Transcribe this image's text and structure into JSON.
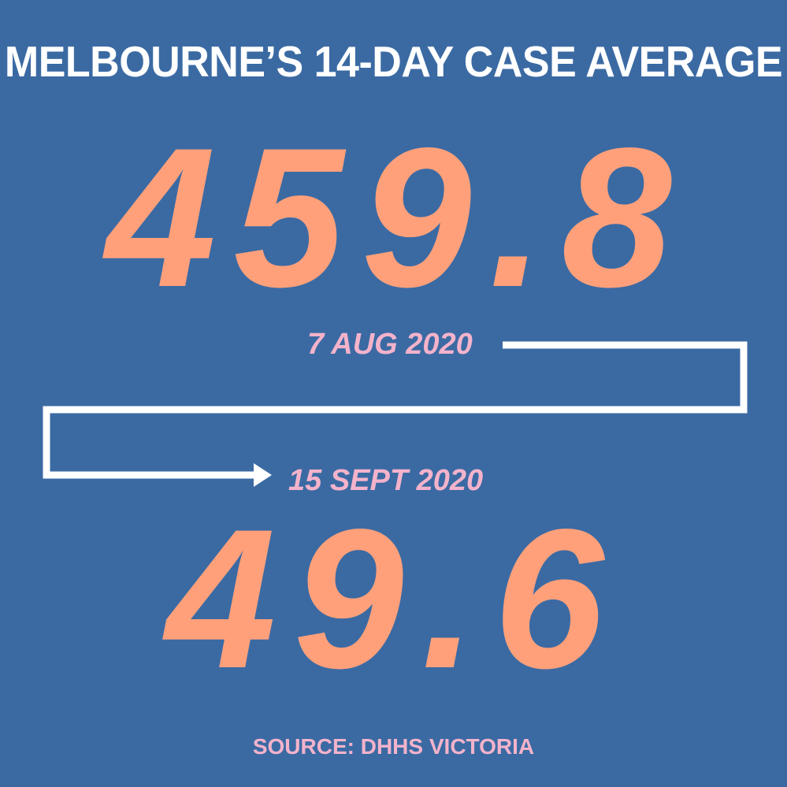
{
  "title": "MELBOURNE’S 14-DAY CASE AVERAGE",
  "start": {
    "value": "459.8",
    "date": "7 AUG 2020"
  },
  "end": {
    "value": "49.6",
    "date": "15 SEPT 2020"
  },
  "source": "SOURCE: DHHS VICTORIA",
  "colors": {
    "background": "#3b6aa3",
    "title": "#ffffff",
    "values": "#ffa07a",
    "dates": "#f4b3cb",
    "connector": "#ffffff"
  },
  "icons": {
    "connector": "arrow-right-icon"
  }
}
